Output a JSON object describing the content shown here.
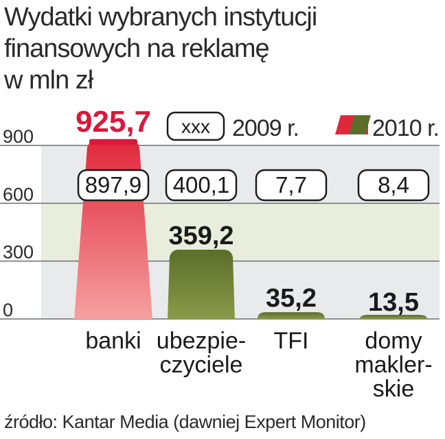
{
  "title_lines": [
    "Wydatki wybranych instytucji",
    "finansowych na reklamę",
    "w mln zł"
  ],
  "legend": {
    "placeholder": "xxx",
    "series_2009": "2009 r.",
    "series_2010": "2010 r."
  },
  "source": "źródło: Kantar Media (dawniej Expert Monitor)",
  "colors": {
    "banki": "#e0283c",
    "banki_light": "#f08a8a",
    "green": "#5b6e2a",
    "green_light": "#8a9a4a",
    "band_light": "#e8eddc",
    "band_gray": "#e9eaeb"
  },
  "chart_data": {
    "type": "bar",
    "categories": [
      {
        "label_lines": [
          "banki"
        ]
      },
      {
        "label_lines": [
          "ubezpie-",
          "czyciele"
        ]
      },
      {
        "label_lines": [
          "TFI"
        ]
      },
      {
        "label_lines": [
          "domy",
          "makler-",
          "skie"
        ]
      }
    ],
    "series": [
      {
        "name": "2009 r.",
        "values": [
          897.9,
          400.1,
          7.7,
          8.4
        ],
        "value_labels": [
          "897,9",
          "400,1",
          "7,7",
          "8,4"
        ]
      },
      {
        "name": "2010 r.",
        "values": [
          925.7,
          359.2,
          35.2,
          13.5
        ],
        "value_labels": [
          "925,7",
          "359,2",
          "35,2",
          "13,5"
        ]
      }
    ],
    "ylim": [
      0,
      900
    ],
    "yticks": [
      0,
      300,
      600,
      900
    ],
    "ytick_labels": [
      "0",
      "300",
      "600",
      "900"
    ],
    "grid": true,
    "legend_position": "top"
  }
}
